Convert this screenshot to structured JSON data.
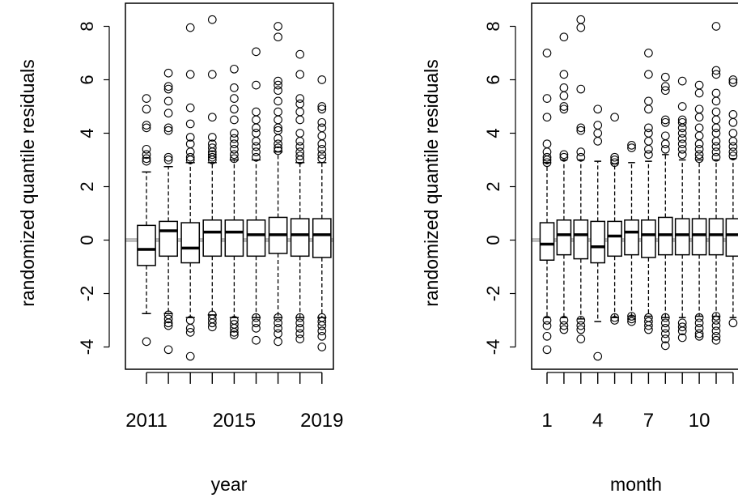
{
  "chart_data": [
    {
      "type": "box",
      "xlabel": "year",
      "ylabel": "randomized quantile residuals",
      "ylim": [
        -5,
        8.8
      ],
      "yticks": [
        -4,
        -2,
        0,
        2,
        4,
        6,
        8
      ],
      "ytick_labels": [
        "-4",
        "-2",
        "0",
        "2",
        "4",
        "6",
        "8"
      ],
      "categories": [
        "2011",
        "2012",
        "2013",
        "2014",
        "2015",
        "2016",
        "2017",
        "2018",
        "2019"
      ],
      "xtick_labels": [
        "2011",
        "2015",
        "2019"
      ],
      "xtick_label_categories": [
        "2011",
        "2015",
        "2019"
      ],
      "reference_line": {
        "y": 0,
        "color": "#bdbdbd"
      },
      "boxes": [
        {
          "category": "2011",
          "q1": -0.95,
          "median": -0.35,
          "q3": 0.55,
          "whisker_low": -2.75,
          "whisker_high": 2.55,
          "outliers": [
            5.3,
            4.9,
            4.3,
            4.2,
            3.4,
            3.2,
            3.05,
            2.95,
            -3.8
          ]
        },
        {
          "category": "2012",
          "q1": -0.6,
          "median": 0.35,
          "q3": 0.7,
          "whisker_low": -2.75,
          "whisker_high": 2.75,
          "outliers": [
            6.25,
            5.75,
            5.65,
            5.2,
            4.75,
            4.2,
            4.1,
            3.1,
            3.0,
            -2.8,
            -2.95,
            -3.1,
            -3.2,
            -4.1
          ]
        },
        {
          "category": "2013",
          "q1": -0.85,
          "median": -0.3,
          "q3": 0.65,
          "whisker_low": -2.9,
          "whisker_high": 2.9,
          "outliers": [
            7.95,
            6.2,
            4.95,
            4.35,
            3.85,
            3.6,
            3.3,
            3.1,
            3.0,
            -3.0,
            -3.3,
            -3.45,
            -4.35
          ]
        },
        {
          "category": "2014",
          "q1": -0.6,
          "median": 0.3,
          "q3": 0.75,
          "whisker_low": -2.8,
          "whisker_high": 2.9,
          "outliers": [
            8.25,
            6.2,
            4.6,
            3.85,
            3.6,
            3.45,
            3.3,
            3.2,
            3.1,
            3.0,
            -2.8,
            -2.95,
            -3.1,
            -3.25
          ]
        },
        {
          "category": "2015",
          "q1": -0.6,
          "median": 0.3,
          "q3": 0.75,
          "whisker_low": -2.9,
          "whisker_high": 3.0,
          "outliers": [
            6.4,
            5.7,
            5.3,
            4.9,
            4.5,
            4.0,
            3.8,
            3.6,
            3.4,
            3.2,
            3.05,
            -3.0,
            -3.15,
            -3.3,
            -3.45,
            -3.55
          ]
        },
        {
          "category": "2016",
          "q1": -0.6,
          "median": 0.2,
          "q3": 0.75,
          "whisker_low": -2.9,
          "whisker_high": 3.0,
          "outliers": [
            7.05,
            5.8,
            4.8,
            4.5,
            4.2,
            4.0,
            3.7,
            3.5,
            3.3,
            3.1,
            -2.9,
            -3.1,
            -3.3,
            -3.75
          ]
        },
        {
          "category": "2017",
          "q1": -0.5,
          "median": 0.2,
          "q3": 0.85,
          "whisker_low": -2.9,
          "whisker_high": 3.3,
          "outliers": [
            8.0,
            7.6,
            5.95,
            5.8,
            5.6,
            5.2,
            4.8,
            4.5,
            4.2,
            4.1,
            3.8,
            3.6,
            3.45,
            3.35,
            -2.9,
            -3.1,
            -3.3,
            -3.5,
            -3.8
          ]
        },
        {
          "category": "2018",
          "q1": -0.6,
          "median": 0.2,
          "q3": 0.8,
          "whisker_low": -2.9,
          "whisker_high": 2.9,
          "outliers": [
            6.95,
            6.2,
            5.3,
            5.1,
            4.8,
            4.5,
            4.0,
            3.7,
            3.5,
            3.3,
            3.15,
            3.0,
            -2.9,
            -3.1,
            -3.3,
            -3.5,
            -3.7
          ]
        },
        {
          "category": "2019",
          "q1": -0.65,
          "median": 0.2,
          "q3": 0.8,
          "whisker_low": -2.9,
          "whisker_high": 2.9,
          "outliers": [
            6.0,
            5.0,
            4.9,
            4.4,
            4.2,
            3.9,
            3.6,
            3.4,
            3.2,
            3.05,
            -2.9,
            -3.05,
            -3.2,
            -3.4,
            -3.6,
            -4.0
          ]
        }
      ]
    },
    {
      "type": "box",
      "xlabel": "month",
      "ylabel": "randomized quantile residuals",
      "ylim": [
        -5,
        8.8
      ],
      "yticks": [
        -4,
        -2,
        0,
        2,
        4,
        6,
        8
      ],
      "ytick_labels": [
        "-4",
        "-2",
        "0",
        "2",
        "4",
        "6",
        "8"
      ],
      "categories": [
        "1",
        "2",
        "3",
        "4",
        "5",
        "6",
        "7",
        "8",
        "9",
        "10",
        "11",
        "12"
      ],
      "xtick_labels": [
        "1",
        "4",
        "7",
        "10"
      ],
      "xtick_label_categories": [
        "1",
        "4",
        "7",
        "10"
      ],
      "reference_line": {
        "y": 0,
        "color": "#bdbdbd"
      },
      "boxes": [
        {
          "category": "1",
          "q1": -0.75,
          "median": -0.15,
          "q3": 0.65,
          "whisker_low": -2.9,
          "whisker_high": 2.9,
          "outliers": [
            7.0,
            5.3,
            4.6,
            3.6,
            3.3,
            3.1,
            3.0,
            2.9,
            -3.0,
            -3.2,
            -3.6,
            -4.1
          ]
        },
        {
          "category": "2",
          "q1": -0.55,
          "median": 0.2,
          "q3": 0.75,
          "whisker_low": -2.9,
          "whisker_high": 3.0,
          "outliers": [
            7.6,
            6.2,
            5.7,
            5.4,
            5.0,
            4.9,
            3.2,
            3.1,
            -3.0,
            -3.2,
            -3.35
          ]
        },
        {
          "category": "3",
          "q1": -0.7,
          "median": 0.2,
          "q3": 0.75,
          "whisker_low": -2.95,
          "whisker_high": 3.0,
          "outliers": [
            8.25,
            7.95,
            5.65,
            4.2,
            4.1,
            3.3,
            3.1,
            -3.0,
            -3.2,
            -3.35,
            -3.7
          ]
        },
        {
          "category": "4",
          "q1": -0.85,
          "median": -0.25,
          "q3": 0.7,
          "whisker_low": -3.05,
          "whisker_high": 2.95,
          "outliers": [
            4.9,
            4.3,
            4.0,
            3.7,
            -4.35
          ]
        },
        {
          "category": "5",
          "q1": -0.6,
          "median": 0.15,
          "q3": 0.7,
          "whisker_low": -2.9,
          "whisker_high": 2.85,
          "outliers": [
            4.6,
            3.1,
            3.0,
            2.9,
            -2.9,
            -3.0
          ]
        },
        {
          "category": "6",
          "q1": -0.55,
          "median": 0.3,
          "q3": 0.75,
          "whisker_low": -2.85,
          "whisker_high": 2.9,
          "outliers": [
            3.55,
            3.45,
            -2.85,
            -2.95,
            -3.05
          ]
        },
        {
          "category": "7",
          "q1": -0.65,
          "median": 0.2,
          "q3": 0.75,
          "whisker_low": -2.85,
          "whisker_high": 2.95,
          "outliers": [
            7.0,
            6.2,
            5.2,
            4.9,
            4.2,
            4.0,
            3.7,
            3.4,
            3.2,
            -2.9,
            -3.05,
            -3.2,
            -3.35
          ]
        },
        {
          "category": "8",
          "q1": -0.55,
          "median": 0.2,
          "q3": 0.85,
          "whisker_low": -2.9,
          "whisker_high": 3.2,
          "outliers": [
            6.1,
            5.75,
            5.6,
            4.5,
            4.4,
            3.9,
            3.6,
            3.4,
            -2.9,
            -3.1,
            -3.3,
            -3.5,
            -3.7,
            -3.95
          ]
        },
        {
          "category": "9",
          "q1": -0.55,
          "median": 0.2,
          "q3": 0.8,
          "whisker_low": -2.9,
          "whisker_high": 3.0,
          "outliers": [
            5.95,
            5.0,
            4.5,
            4.4,
            4.2,
            4.0,
            3.8,
            3.6,
            3.4,
            3.2,
            -3.1,
            -3.25,
            -3.4,
            -3.65
          ]
        },
        {
          "category": "10",
          "q1": -0.55,
          "median": 0.2,
          "q3": 0.8,
          "whisker_low": -2.85,
          "whisker_high": 3.0,
          "outliers": [
            5.8,
            5.5,
            4.9,
            4.6,
            4.2,
            3.9,
            3.6,
            3.4,
            3.2,
            3.05,
            -2.9,
            -3.1,
            -3.3,
            -3.5,
            -3.6
          ]
        },
        {
          "category": "11",
          "q1": -0.55,
          "median": 0.2,
          "q3": 0.8,
          "whisker_low": -2.85,
          "whisker_high": 3.0,
          "outliers": [
            8.0,
            6.35,
            6.2,
            5.5,
            5.2,
            4.8,
            4.5,
            4.2,
            4.0,
            3.7,
            3.5,
            3.3,
            3.1,
            -2.85,
            -3.0,
            -3.2,
            -3.4,
            -3.6,
            -3.75
          ]
        },
        {
          "category": "12",
          "q1": -0.6,
          "median": 0.2,
          "q3": 0.8,
          "whisker_low": -2.9,
          "whisker_high": 3.05,
          "outliers": [
            6.0,
            5.9,
            4.7,
            4.4,
            4.0,
            3.7,
            3.5,
            3.3,
            3.15,
            -3.1
          ]
        }
      ]
    }
  ]
}
